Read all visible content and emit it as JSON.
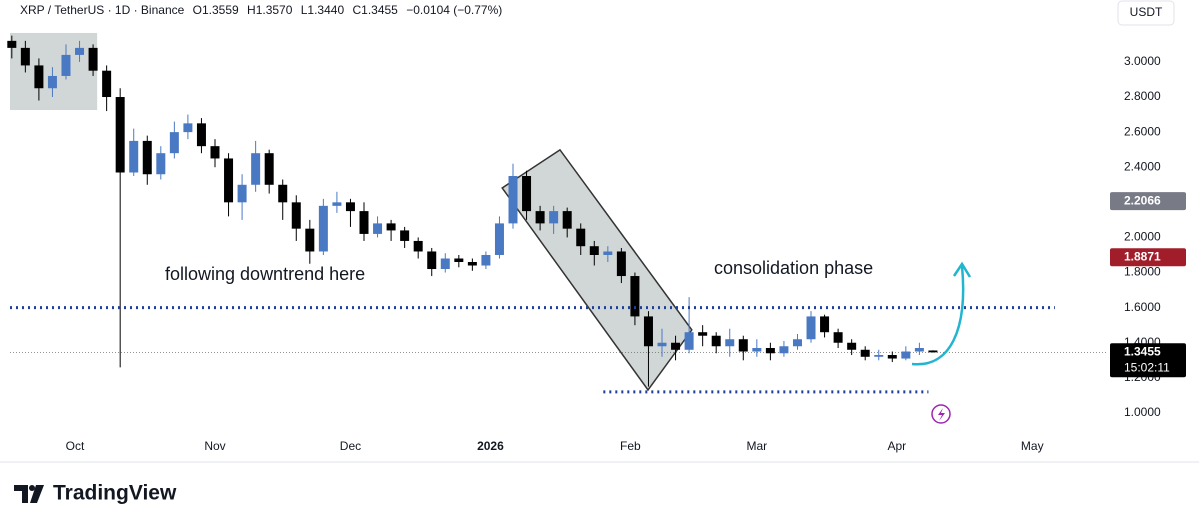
{
  "chart_data": {
    "type": "candlestick",
    "title": "XRP / TetherUS · 1D · Binance",
    "ohlc_legend": [
      "O1.3559",
      "H1.3570",
      "L1.3440",
      "C1.3455",
      "−0.0104 (−0.77%)"
    ],
    "currency": "USDT",
    "annotations": [
      "following downtrend here",
      "consolidation phase"
    ],
    "x": [
      -14,
      -11,
      -8,
      -5,
      -2,
      1,
      4,
      7,
      10,
      13,
      16,
      19,
      22,
      25,
      28,
      31,
      34,
      37,
      40,
      43,
      46,
      49,
      52,
      55,
      58,
      61,
      64,
      67,
      70,
      73,
      76,
      79,
      82,
      85,
      88,
      91,
      94,
      97,
      100,
      103,
      106,
      109,
      112,
      115,
      118,
      121,
      124,
      127,
      130,
      133,
      136,
      139,
      142,
      145,
      148,
      151,
      154,
      157,
      160,
      163,
      166,
      169,
      172,
      175,
      178,
      181,
      184,
      187,
      190
    ],
    "open": [
      3.12,
      3.08,
      2.98,
      2.85,
      2.92,
      3.04,
      3.08,
      2.95,
      2.8,
      2.37,
      2.55,
      2.36,
      2.48,
      2.6,
      2.65,
      2.52,
      2.45,
      2.2,
      2.3,
      2.48,
      2.3,
      2.2,
      2.05,
      1.92,
      2.18,
      2.2,
      2.15,
      2.02,
      2.08,
      2.04,
      1.98,
      1.92,
      1.82,
      1.88,
      1.86,
      1.84,
      1.9,
      2.08,
      2.35,
      2.15,
      2.08,
      2.15,
      2.05,
      1.95,
      1.9,
      1.92,
      1.78,
      1.55,
      1.38,
      1.4,
      1.36,
      1.46,
      1.44,
      1.38,
      1.42,
      1.35,
      1.37,
      1.34,
      1.38,
      1.42,
      1.55,
      1.46,
      1.4,
      1.36,
      1.32,
      1.33,
      1.31,
      1.35,
      1.3559
    ],
    "high": [
      3.15,
      3.12,
      3.02,
      2.97,
      3.1,
      3.12,
      3.1,
      2.98,
      2.85,
      2.62,
      2.58,
      2.52,
      2.66,
      2.7,
      2.68,
      2.56,
      2.48,
      2.36,
      2.55,
      2.5,
      2.33,
      2.24,
      2.1,
      2.22,
      2.26,
      2.22,
      2.2,
      2.12,
      2.1,
      2.06,
      2.0,
      1.94,
      1.91,
      1.9,
      1.88,
      1.92,
      2.12,
      2.42,
      2.38,
      2.18,
      2.18,
      2.17,
      2.08,
      1.98,
      1.95,
      1.94,
      1.8,
      1.58,
      1.48,
      1.44,
      1.66,
      1.5,
      1.46,
      1.48,
      1.44,
      1.42,
      1.4,
      1.41,
      1.45,
      1.58,
      1.56,
      1.48,
      1.42,
      1.38,
      1.36,
      1.35,
      1.38,
      1.4,
      1.357
    ],
    "low": [
      3.02,
      2.94,
      2.78,
      2.8,
      2.9,
      3.0,
      2.92,
      2.72,
      1.26,
      2.35,
      2.3,
      2.33,
      2.45,
      2.56,
      2.48,
      2.4,
      2.12,
      2.1,
      2.26,
      2.25,
      2.1,
      1.98,
      1.85,
      1.9,
      2.14,
      2.06,
      1.98,
      2.0,
      1.98,
      1.94,
      1.88,
      1.78,
      1.8,
      1.83,
      1.81,
      1.82,
      1.88,
      2.05,
      2.1,
      2.04,
      2.02,
      2.0,
      1.9,
      1.84,
      1.86,
      1.74,
      1.5,
      1.15,
      1.32,
      1.3,
      1.34,
      1.38,
      1.34,
      1.32,
      1.3,
      1.32,
      1.3,
      1.32,
      1.36,
      1.4,
      1.43,
      1.37,
      1.33,
      1.3,
      1.3,
      1.29,
      1.3,
      1.33,
      1.344
    ],
    "close": [
      3.08,
      2.98,
      2.85,
      2.92,
      3.04,
      3.08,
      2.95,
      2.8,
      2.37,
      2.55,
      2.36,
      2.48,
      2.6,
      2.65,
      2.52,
      2.45,
      2.2,
      2.3,
      2.48,
      2.3,
      2.2,
      2.05,
      1.92,
      2.18,
      2.2,
      2.15,
      2.02,
      2.08,
      2.04,
      1.98,
      1.92,
      1.82,
      1.88,
      1.86,
      1.84,
      1.9,
      2.08,
      2.35,
      2.15,
      2.08,
      2.15,
      2.05,
      1.95,
      1.9,
      1.92,
      1.78,
      1.55,
      1.38,
      1.4,
      1.36,
      1.46,
      1.44,
      1.38,
      1.42,
      1.35,
      1.37,
      1.34,
      1.38,
      1.42,
      1.55,
      1.46,
      1.4,
      1.36,
      1.32,
      1.33,
      1.31,
      1.35,
      1.37,
      1.3455
    ],
    "up_color": "#4a79c4",
    "down_color": "#000000",
    "xlim": [
      -14.4,
      227
    ],
    "xticks": [
      {
        "value": 0,
        "label": "Oct"
      },
      {
        "value": 31,
        "label": "Nov"
      },
      {
        "value": 61,
        "label": "Dec"
      },
      {
        "value": 92,
        "label": "2026"
      },
      {
        "value": 123,
        "label": "Feb"
      },
      {
        "value": 151,
        "label": "Mar"
      },
      {
        "value": 182,
        "label": "Apr"
      },
      {
        "value": 212,
        "label": "May"
      }
    ],
    "ylim": [
      0.9,
      3.33
    ],
    "yticks": [
      {
        "value": 1.0,
        "label": "1.0000"
      },
      {
        "value": 1.2,
        "label": "1.2000"
      },
      {
        "value": 1.4,
        "label": "1.4000"
      },
      {
        "value": 1.6,
        "label": "1.6000"
      },
      {
        "value": 1.8,
        "label": "1.8000"
      },
      {
        "value": 2.0,
        "label": "2.0000"
      },
      {
        "value": 2.2,
        "label": "2.2000"
      },
      {
        "value": 2.4,
        "label": "2.4000"
      },
      {
        "value": 2.6,
        "label": "2.6000"
      },
      {
        "value": 2.8,
        "label": "2.8000"
      },
      {
        "value": 3.0,
        "label": "3.0000"
      }
    ],
    "price_tags": [
      {
        "value": 2.2066,
        "color": "#787b86"
      },
      {
        "value": 1.8871,
        "color": "#a11d2a"
      },
      {
        "value": 1.3455,
        "color": "#000000",
        "countdown": "15:02:11"
      }
    ],
    "levels": [
      {
        "value": 1.6,
        "from": -14.4,
        "to": 217,
        "color": "#1f3f9a"
      },
      {
        "value": 1.12,
        "from": 117,
        "to": 189,
        "color": "#1f3f9a"
      }
    ],
    "zones": [
      {
        "x": [
          -14.4,
          4.9
        ],
        "y": [
          2.726,
          3.165
        ]
      }
    ],
    "channel": {
      "x": [
        94.6,
        107.4,
        136.6,
        126.9
      ],
      "y": [
        2.282,
        2.499,
        1.473,
        1.131
      ]
    }
  },
  "branding": "TradingView"
}
